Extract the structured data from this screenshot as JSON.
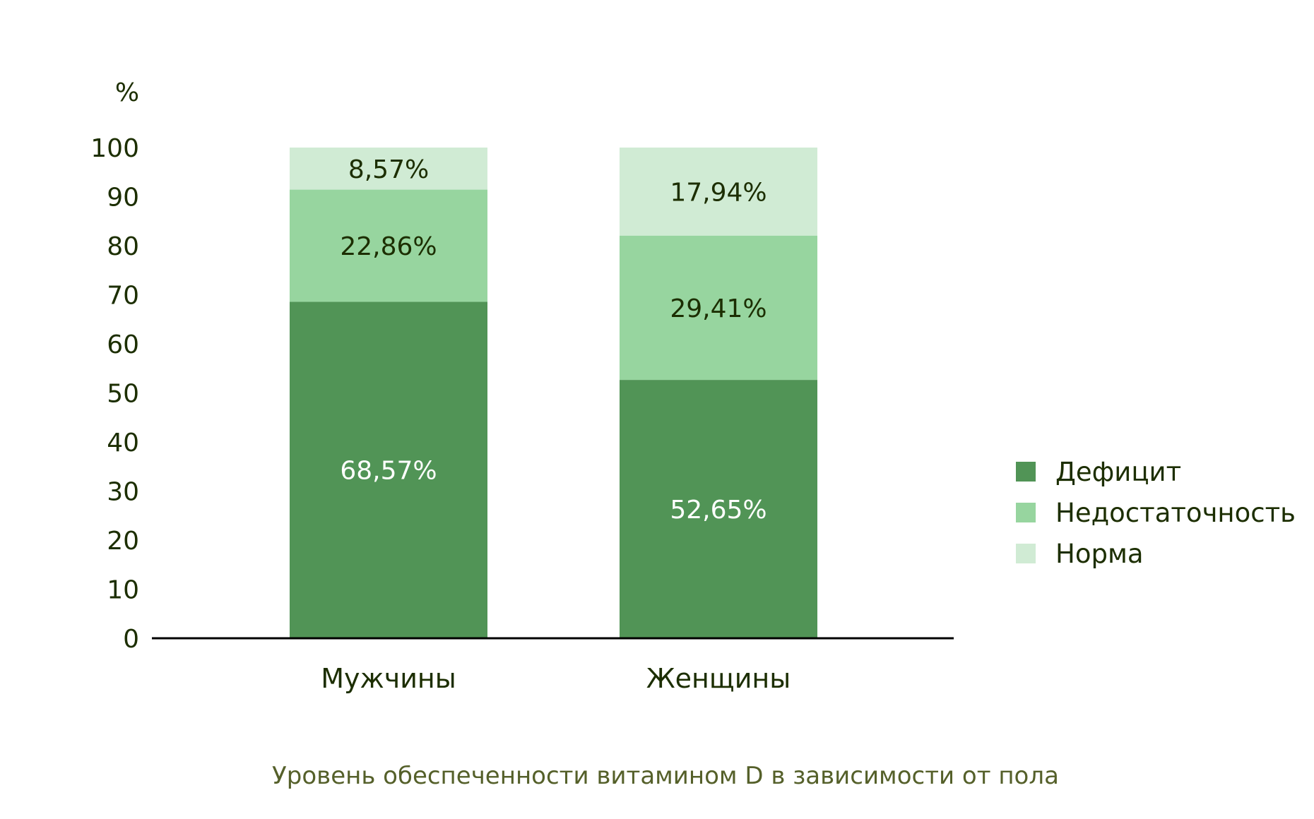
{
  "chart_data": {
    "type": "bar",
    "stacked": true,
    "title": "Уровень обеспеченности витамином D в зависимости от пола",
    "ylabel": "%",
    "xlabel": "",
    "ylim": [
      0,
      100
    ],
    "yticks": [
      0,
      10,
      20,
      30,
      40,
      50,
      60,
      70,
      80,
      90,
      100
    ],
    "grid": false,
    "legend_position": "right",
    "categories": [
      "Мужчины",
      "Женщины"
    ],
    "series": [
      {
        "name": "Дефицит",
        "values": [
          68.57,
          52.65
        ],
        "labels": [
          "68,57%",
          "52,65%"
        ],
        "color": "#519456",
        "label_color": "#ffffff"
      },
      {
        "name": "Недостаточность",
        "values": [
          22.86,
          29.41
        ],
        "labels": [
          "22,86%",
          "29,41%"
        ],
        "color": "#97d59f",
        "label_color": "#1c2e00"
      },
      {
        "name": "Норма",
        "values": [
          8.57,
          17.94
        ],
        "labels": [
          "8,57%",
          "17,94%"
        ],
        "color": "#d0ebd4",
        "label_color": "#1c2e00"
      }
    ]
  }
}
